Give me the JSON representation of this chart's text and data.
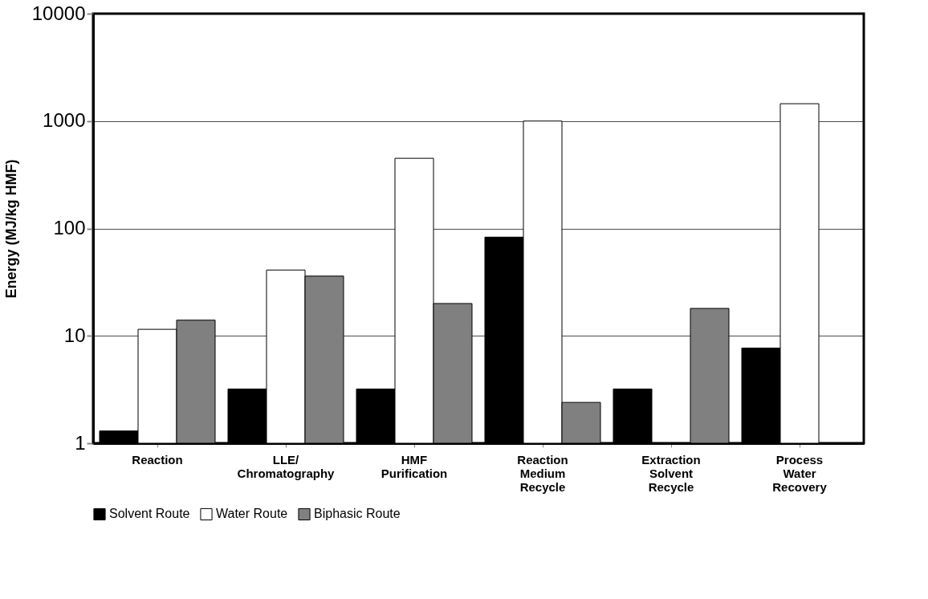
{
  "chart_data": {
    "type": "bar",
    "ylabel": "Energy (MJ/kg HMF)",
    "log": true,
    "ylim": [
      1,
      10000
    ],
    "yticks": [
      1,
      10,
      100,
      1000,
      10000
    ],
    "grid": "y",
    "legend": "bottom",
    "categories": [
      "Reaction",
      "LLE/ Chromatography",
      "HMF Purification",
      "Reaction Medium Recycle",
      "Extraction Solvent Recycle",
      "Process Water Recovery"
    ],
    "series": [
      {
        "name": "Solvent Route",
        "color": "#000000",
        "values": [
          1.3,
          3.2,
          3.2,
          83,
          3.2,
          7.7
        ]
      },
      {
        "name": "Water Route",
        "color": "#ffffff",
        "values": [
          11.5,
          41,
          450,
          1000,
          null,
          1450
        ]
      },
      {
        "name": "Biphasic Route",
        "color": "#808080",
        "values": [
          14,
          36,
          20,
          2.4,
          18,
          null
        ]
      }
    ]
  }
}
